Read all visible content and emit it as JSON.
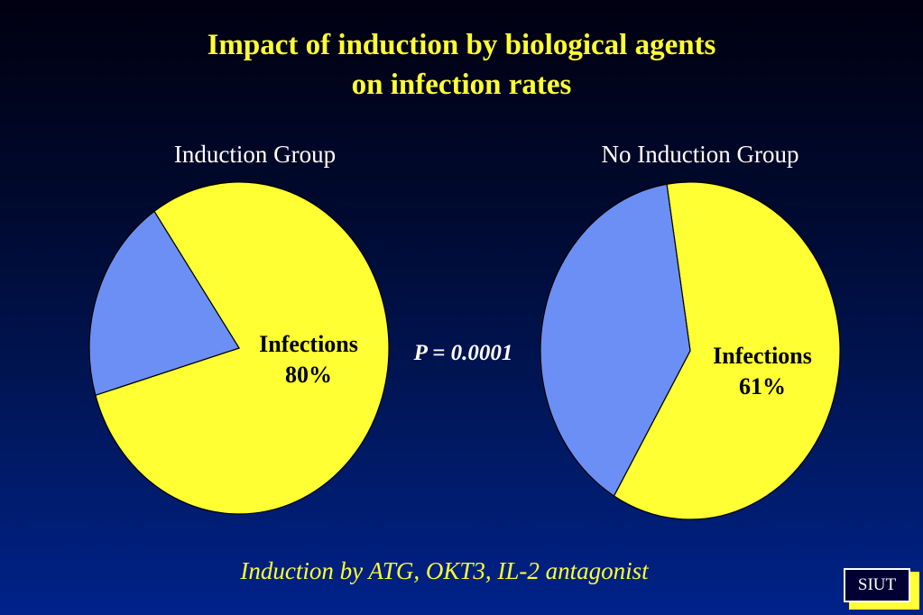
{
  "title": {
    "line1": "Impact of induction by biological agents",
    "line2": "on infection rates"
  },
  "chart_data": [
    {
      "type": "pie",
      "title": "Induction Group",
      "slices": [
        {
          "label": "Infections",
          "value": 80,
          "value_label": "80%",
          "color": "#ffff33"
        },
        {
          "label": "",
          "value": 20,
          "color": "#6b8ff5"
        }
      ]
    },
    {
      "type": "pie",
      "title": "No Induction Group",
      "slices": [
        {
          "label": "Infections",
          "value": 61,
          "value_label": "61%",
          "color": "#ffff33"
        },
        {
          "label": "",
          "value": 39,
          "color": "#6b8ff5"
        }
      ]
    }
  ],
  "p_value": {
    "symbol": "P",
    "rest": " = 0.0001"
  },
  "footnote": "Induction by ATG, OKT3, IL-2 antagonist",
  "badge": "SIUT",
  "colors": {
    "title": "#ffff33",
    "infections": "#ffff33",
    "other": "#6b8ff5",
    "outline": "#000000"
  }
}
